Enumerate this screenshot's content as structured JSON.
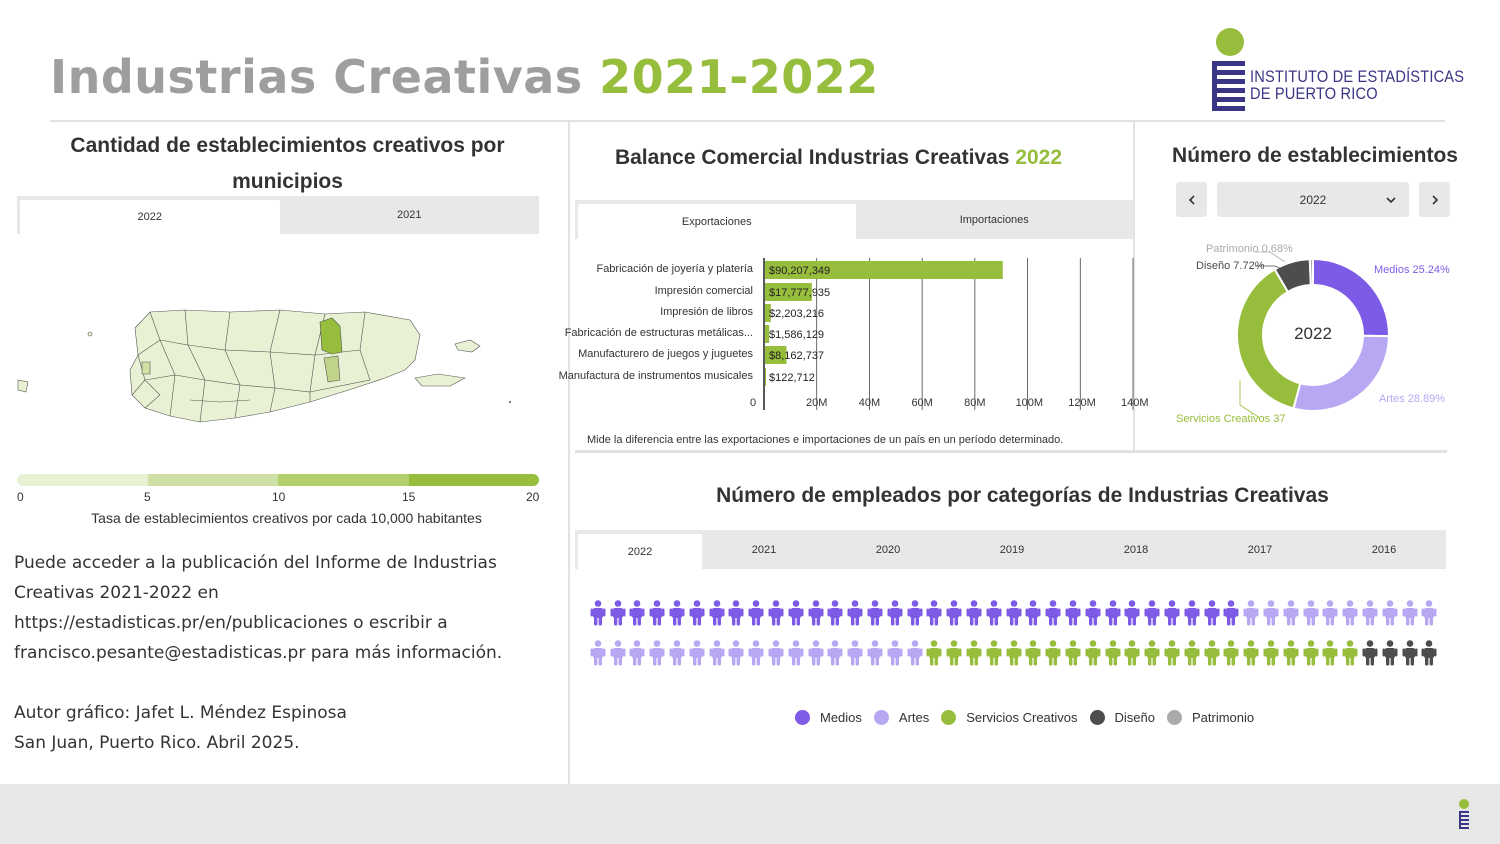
{
  "title": {
    "part1": "Industrias Creativas",
    "part2": "2021-2022"
  },
  "logo": {
    "line1": "INSTITUTO DE ESTADÍSTICAS",
    "line2": "DE PUERTO RICO"
  },
  "colors": {
    "green": "#97bd3d",
    "purple": "#7e5be6",
    "lavender": "#b8a7f2",
    "dark": "#4d4d4d",
    "gray": "#aaaaaa",
    "title_gray": "#9e9e9e"
  },
  "map_panel": {
    "title": "Cantidad de establecimientos creativos por municipios",
    "tabs": [
      "2022",
      "2021"
    ],
    "active_tab": "2022",
    "legend_ticks": [
      "0",
      "5",
      "10",
      "15",
      "20"
    ],
    "legend_caption": "Tasa de establecimientos creativos por cada 10,000 habitantes"
  },
  "info": {
    "lines": [
      "Puede acceder a la publicación del Informe de Industrias",
      "Creativas 2021-2022 en",
      "https://estadisticas.pr/en/publicaciones o escribir a",
      "francisco.pesante@estadisticas.pr para más información."
    ],
    "author": "Autor gráfico: Jafet L. Méndez Espinosa",
    "place_date": "San Juan, Puerto Rico. Abril 2025."
  },
  "balance": {
    "title_text": "Balance Comercial Industrias Creativas",
    "title_year": "2022",
    "tabs": [
      "Exportaciones",
      "Importaciones"
    ],
    "active_tab": "Exportaciones",
    "note": "Mide la diferencia entre las exportaciones e importaciones de un país en un período determinado."
  },
  "chart_data": {
    "type": "bar",
    "orientation": "horizontal",
    "categories": [
      "Fabricación de joyería y platería",
      "Impresión comercial",
      "Impresión de libros",
      "Fabricación de estructuras metálicas...",
      "Manufacturero de juegos y juguetes",
      "Manufactura de instrumentos musicales"
    ],
    "values": [
      90207349,
      17777935,
      2203216,
      1586129,
      8162737,
      122712
    ],
    "data_labels": [
      "$90,207,349",
      "$17,777,935",
      "$2,203,216",
      "$1,586,129",
      "$8,162,737",
      "$122,712"
    ],
    "x_ticks": [
      "0",
      "20M",
      "40M",
      "60M",
      "80M",
      "100M",
      "120M",
      "140M"
    ],
    "xlim": [
      0,
      140000000
    ],
    "grid": true
  },
  "donut": {
    "title": "Número de establecimientos",
    "selected_year": "2022",
    "center_label": "2022",
    "segments": [
      {
        "name": "Medios",
        "label": "Medios 25.24%",
        "value": 25.24,
        "color": "#7e5be6"
      },
      {
        "name": "Artes",
        "label": "Artes 28.89%",
        "value": 28.89,
        "color": "#b8a7f2"
      },
      {
        "name": "Servicios Creativos",
        "label": "Servicios Creativos 37",
        "value": 37.47,
        "color": "#97bd3d"
      },
      {
        "name": "Diseño",
        "label": "Diseño 7.72%",
        "value": 7.72,
        "color": "#4d4d4d"
      },
      {
        "name": "Patrimonio",
        "label": "Patrimonio 0.68%",
        "value": 0.68,
        "color": "#aaaaaa"
      }
    ]
  },
  "employees": {
    "title": "Número de empleados por categorías de Industrias Creativas",
    "tabs": [
      "2022",
      "2021",
      "2020",
      "2019",
      "2018",
      "2017",
      "2016"
    ],
    "active_tab": "2022",
    "row1": {
      "Medios": 33,
      "Artes": 10
    },
    "row2": {
      "Artes": 17,
      "Servicios Creativos": 22,
      "Diseño": 4
    },
    "legend": [
      "Medios",
      "Artes",
      "Servicios Creativos",
      "Diseño",
      "Patrimonio"
    ]
  }
}
